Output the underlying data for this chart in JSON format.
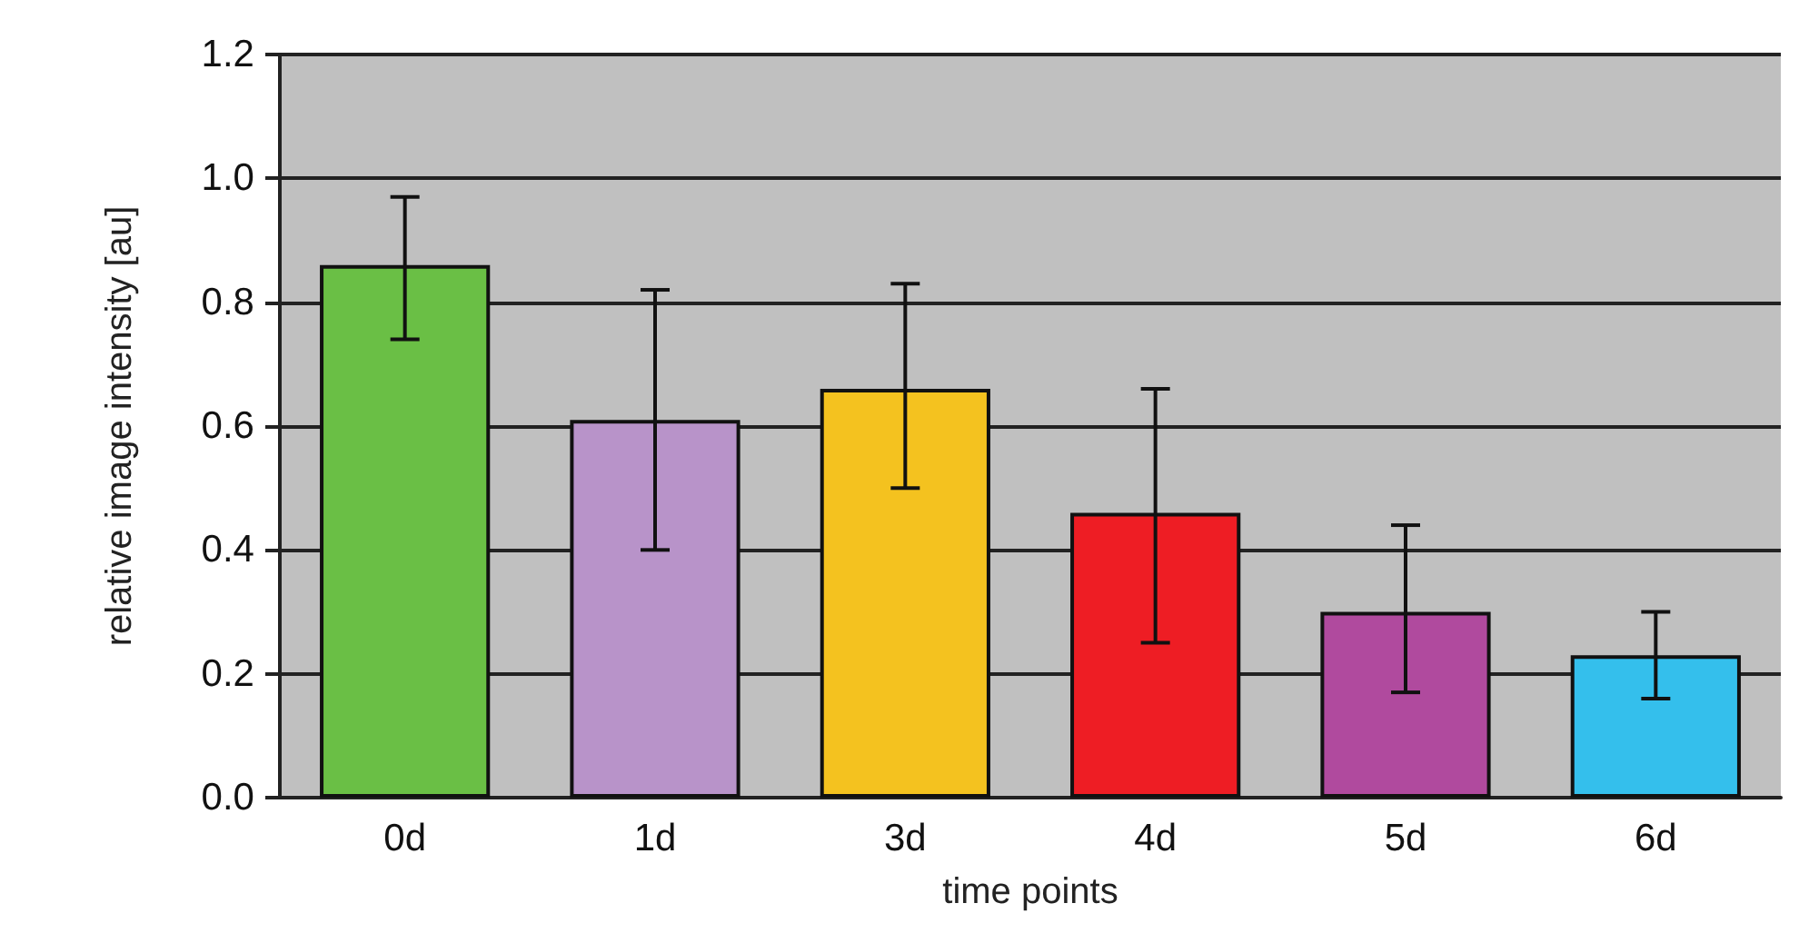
{
  "chart_data": {
    "type": "bar",
    "xlabel": "time points",
    "ylabel": "relative image intensity [au]",
    "categories": [
      "0d",
      "1d",
      "3d",
      "4d",
      "5d",
      "6d"
    ],
    "values": [
      0.86,
      0.61,
      0.66,
      0.46,
      0.3,
      0.23
    ],
    "colors": [
      "#6abf45",
      "#b893c9",
      "#f4c21f",
      "#ee1d24",
      "#b04a9e",
      "#34bfec"
    ],
    "errors": [
      [
        0.74,
        0.97
      ],
      [
        0.4,
        0.82
      ],
      [
        0.5,
        0.83
      ],
      [
        0.25,
        0.66
      ],
      [
        0.17,
        0.44
      ],
      [
        0.16,
        0.3
      ]
    ],
    "ylim": [
      0,
      1.2
    ],
    "yticks": [
      {
        "value": 0,
        "label": "0.0"
      },
      0.2,
      0.4,
      0.6,
      0.8,
      {
        "value": 1,
        "label": "1.0"
      },
      1.2
    ],
    "grid": "y"
  }
}
